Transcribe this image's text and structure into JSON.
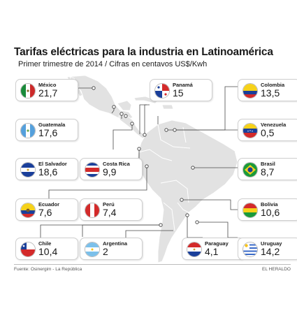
{
  "title": "Tarifas eléctricas para la industria en Latinoamérica",
  "subtitle": "Primer trimestre de 2014 / Cifras en centavos US$/Kwh",
  "source": "Fuente: Osinergim - La República",
  "brand": "EL HERALDO",
  "colors": {
    "map": "#e2e2e2",
    "map_stroke": "#ffffff",
    "leader": "#4a4a4a"
  },
  "chart_data": {
    "type": "table",
    "title": "Tarifas eléctricas para la industria en Latinoamérica",
    "subtitle": "Primer trimestre de 2014 / Cifras en centavos US$/Kwh",
    "unit": "centavos US$/Kwh",
    "countries": [
      {
        "name": "México",
        "value": "21,7"
      },
      {
        "name": "Panamá",
        "value": "15"
      },
      {
        "name": "Colombia",
        "value": "13,5"
      },
      {
        "name": "Guatemala",
        "value": "17,6"
      },
      {
        "name": "Venezuela",
        "value": "0,5"
      },
      {
        "name": "El Salvador",
        "value": "18,6"
      },
      {
        "name": "Costa Rica",
        "value": "9,9"
      },
      {
        "name": "Brasil",
        "value": "8,7"
      },
      {
        "name": "Ecuador",
        "value": "7,6"
      },
      {
        "name": "Perú",
        "value": "7,4"
      },
      {
        "name": "Bolivia",
        "value": "10,6"
      },
      {
        "name": "Chile",
        "value": "10,4"
      },
      {
        "name": "Argentina",
        "value": "2"
      },
      {
        "name": "Paraguay",
        "value": "4,1"
      },
      {
        "name": "Uruguay",
        "value": "14,2"
      }
    ]
  }
}
